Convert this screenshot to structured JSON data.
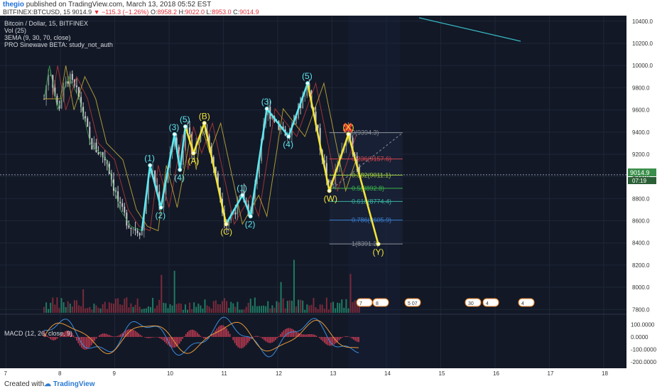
{
  "header": {
    "author": "thegio",
    "published": "published on TradingView.com, March 13, 2018 05:52 EST",
    "symbol": "BITFINEX:BTCUSD, 15",
    "last": "9014.9",
    "change": "−115.3 (−1.26%)",
    "o_label": "O:",
    "o": "8958.2",
    "h_label": "H:",
    "h": "9022.0",
    "l_label": "L:",
    "l": "8953.0",
    "c_label": "C:",
    "c": "9014.9"
  },
  "legend": [
    "Bitcoin / Dollar, 15, BITFINEX",
    "Vol (25)",
    "3EMA (9, 30, 70, close)",
    "PRO Sinewave BETA: study_not_auth"
  ],
  "macd_label": "MACD (12, 26, close, 9)",
  "footer": {
    "created": "Created with",
    "brand": "TradingView"
  },
  "price_badge": {
    "price": "9014.9",
    "time": "07:19"
  },
  "colors": {
    "bg": "#121826",
    "wave_cyan": "#5ee8f0",
    "wave_yellow": "#f2e43a",
    "fib": "#9aa0a8",
    "up": "#2bb089",
    "down": "#e0415a"
  },
  "chart_data": {
    "type": "line",
    "xlabel": "",
    "ylabel": "",
    "x_ticks": [
      "7",
      "8",
      "9",
      "10",
      "11",
      "12",
      "13",
      "14",
      "15",
      "16",
      "17",
      "18"
    ],
    "ylim": [
      7770,
      10450
    ],
    "y_ticks": [
      "10400.0",
      "10200.0",
      "10000.0",
      "9800.0",
      "9600.0",
      "9400.0",
      "9200.0",
      "9000.0",
      "8800.0",
      "8600.0",
      "8400.0",
      "8200.0",
      "8000.0",
      "7800.0"
    ],
    "macd_ylim": [
      -250,
      170
    ],
    "macd_ticks": [
      "100.0000",
      "0.0000",
      "-100.0000",
      "-200.0000"
    ],
    "series": [
      {
        "name": "",
        "color": "#5ee8f0",
        "points": [
          [
            9.5,
            8510
          ],
          [
            9.65,
            9100
          ],
          [
            9.85,
            8720
          ],
          [
            10.1,
            9380
          ],
          [
            10.2,
            9060
          ],
          [
            10.3,
            9450
          ]
        ]
      },
      {
        "name": "",
        "color": "#f2e43a",
        "points": [
          [
            10.3,
            9450
          ],
          [
            10.45,
            9210
          ],
          [
            10.65,
            9480
          ],
          [
            11.05,
            8570
          ]
        ]
      },
      {
        "name": "",
        "color": "#5ee8f0",
        "points": [
          [
            11.05,
            8570
          ],
          [
            11.35,
            8830
          ],
          [
            11.5,
            8640
          ],
          [
            11.8,
            9610
          ],
          [
            12.2,
            9360
          ],
          [
            12.55,
            9840
          ]
        ]
      },
      {
        "name": "",
        "color": "#f2e43a",
        "points": [
          [
            12.55,
            9840
          ],
          [
            12.95,
            8870
          ],
          [
            13.3,
            9380
          ],
          [
            13.85,
            8390
          ]
        ]
      }
    ],
    "wave_labels": [
      {
        "text": "(1)",
        "x": 9.65,
        "y": 9100,
        "color": "cyan"
      },
      {
        "text": "(2)",
        "x": 9.85,
        "y": 8720,
        "color": "cyan"
      },
      {
        "text": "(3)",
        "x": 10.1,
        "y": 9380,
        "color": "cyan"
      },
      {
        "text": "(4)",
        "x": 10.2,
        "y": 9060,
        "color": "cyan"
      },
      {
        "text": "(5)",
        "x": 10.3,
        "y": 9450,
        "color": "cyan"
      },
      {
        "text": "(A)",
        "x": 10.45,
        "y": 9210,
        "color": "yellow"
      },
      {
        "text": "(B)",
        "x": 10.65,
        "y": 9480,
        "color": "yellow"
      },
      {
        "text": "(C)",
        "x": 11.05,
        "y": 8570,
        "color": "yellow"
      },
      {
        "text": "(1)",
        "x": 11.35,
        "y": 8830,
        "color": "cyan"
      },
      {
        "text": "(2)",
        "x": 11.5,
        "y": 8640,
        "color": "cyan"
      },
      {
        "text": "(3)",
        "x": 11.8,
        "y": 9610,
        "color": "cyan"
      },
      {
        "text": "(4)",
        "x": 12.2,
        "y": 9360,
        "color": "cyan"
      },
      {
        "text": "(5)",
        "x": 12.55,
        "y": 9840,
        "color": "cyan"
      },
      {
        "text": "(W)",
        "x": 12.95,
        "y": 8870,
        "color": "yellow"
      },
      {
        "text": "(X)",
        "x": 13.3,
        "y": 9380,
        "color": "yellow"
      },
      {
        "text": "(Y)",
        "x": 13.85,
        "y": 8390,
        "color": "yellow"
      }
    ],
    "fib_levels": [
      {
        "label": "0(9394.3)",
        "value": 9394.3,
        "color": "#8c9199"
      },
      {
        "label": "0.236(9157.6)",
        "value": 9157.6,
        "color": "#d2444c"
      },
      {
        "label": "0.382(9011.1)",
        "value": 9011.1,
        "color": "#9ccc3a"
      },
      {
        "label": "0.5(8892.8)",
        "value": 8892.8,
        "color": "#3ab54a"
      },
      {
        "label": "0.618(8774.4)",
        "value": 8774.4,
        "color": "#39b0a0"
      },
      {
        "label": "0.786(8605.9)",
        "value": 8605.9,
        "color": "#3a7fd0"
      },
      {
        "label": "1(8391.2)",
        "value": 8391.2,
        "color": "#8c9199"
      }
    ],
    "event_badges": [
      "7",
      "8",
      "5 07",
      "30",
      "4",
      "4"
    ]
  }
}
